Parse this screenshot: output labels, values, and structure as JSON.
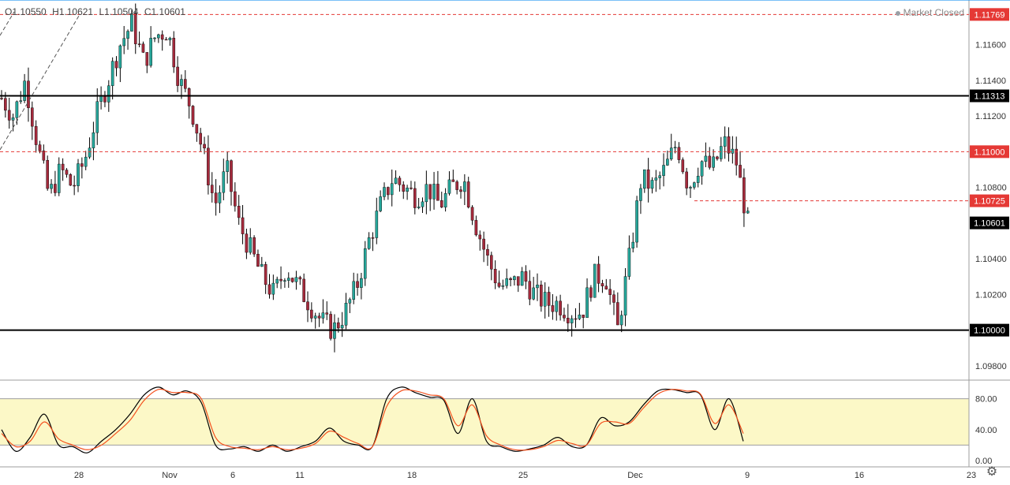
{
  "ohlc": {
    "open": "O1.10550",
    "high": "H1.10621",
    "low": "L1.10504",
    "close": "C1.10601"
  },
  "status": {
    "market": "Market Closed"
  },
  "chart_data": {
    "type": "candlestick",
    "price_axis": {
      "ylim": [
        1.0972,
        1.1185
      ],
      "ticks": [
        "1.11600",
        "1.11400",
        "1.11200",
        "1.10800",
        "1.10400",
        "1.10200",
        "1.09800"
      ]
    },
    "time_axis": {
      "labels": [
        {
          "text": "28",
          "index": 0
        },
        {
          "text": "Nov",
          "index": 5
        },
        {
          "text": "6",
          "index": 8
        },
        {
          "text": "11",
          "index": 13
        },
        {
          "text": "18",
          "index": 20
        },
        {
          "text": "25",
          "index": 25
        },
        {
          "text": "Dec",
          "index": 30
        },
        {
          "text": "9",
          "index": 35
        },
        {
          "text": "16",
          "index": 40
        },
        {
          "text": "23",
          "index": 45
        }
      ]
    },
    "levels": [
      {
        "price": 1.11769,
        "label": "1.11769",
        "style": "dashed",
        "color": "#e53935",
        "tag_bg": "#e53935",
        "tag_fg": "#ffffff"
      },
      {
        "price": 1.11313,
        "label": "1.11313",
        "style": "solid",
        "color": "#000000",
        "tag_bg": "#000000",
        "tag_fg": "#ffffff"
      },
      {
        "price": 1.11,
        "label": "1.11000",
        "style": "dashed",
        "color": "#e53935",
        "tag_bg": "#e53935",
        "tag_fg": "#ffffff"
      },
      {
        "price": 1.10725,
        "label": "1.10725",
        "style": "dashed",
        "color": "#e53935",
        "tag_bg": "#e53935",
        "tag_fg": "#ffffff"
      },
      {
        "price": 1.10601,
        "label": "1.10601",
        "style": "none",
        "color": "#000000",
        "tag_bg": "#000000",
        "tag_fg": "#ffffff"
      },
      {
        "price": 1.1,
        "label": "1.10000",
        "style": "solid",
        "color": "#000000",
        "tag_bg": "#000000",
        "tag_fg": "#ffffff"
      }
    ],
    "waypoints": [
      [
        0,
        1.113
      ],
      [
        1,
        1.112
      ],
      [
        2,
        1.114
      ],
      [
        3,
        1.1105
      ],
      [
        4,
        1.1075
      ],
      [
        5,
        1.109
      ],
      [
        6,
        1.108
      ],
      [
        7,
        1.1095
      ],
      [
        8,
        1.112
      ],
      [
        9,
        1.114
      ],
      [
        10,
        1.116
      ],
      [
        11,
        1.1172
      ],
      [
        12,
        1.115
      ],
      [
        13,
        1.1165
      ],
      [
        14,
        1.1168
      ],
      [
        15,
        1.114
      ],
      [
        16,
        1.1125
      ],
      [
        17,
        1.11
      ],
      [
        18,
        1.107
      ],
      [
        19,
        1.109
      ],
      [
        20,
        1.106
      ],
      [
        21,
        1.1045
      ],
      [
        22,
        1.103
      ],
      [
        23,
        1.102
      ],
      [
        24,
        1.1035
      ],
      [
        25,
        1.1025
      ],
      [
        26,
        1.1015
      ],
      [
        27,
        1.1005
      ],
      [
        28,
        1.1
      ],
      [
        29,
        1.101
      ],
      [
        30,
        1.1025
      ],
      [
        31,
        1.105
      ],
      [
        32,
        1.107
      ],
      [
        33,
        1.1085
      ],
      [
        34,
        1.108
      ],
      [
        35,
        1.1075
      ],
      [
        36,
        1.108
      ],
      [
        37,
        1.107
      ],
      [
        38,
        1.108
      ],
      [
        39,
        1.1085
      ],
      [
        40,
        1.106
      ],
      [
        41,
        1.104
      ],
      [
        42,
        1.1025
      ],
      [
        43,
        1.1025
      ],
      [
        44,
        1.103
      ],
      [
        45,
        1.102
      ],
      [
        46,
        1.1015
      ],
      [
        47,
        1.1015
      ],
      [
        48,
        1.101
      ],
      [
        49,
        1.101
      ],
      [
        50,
        1.103
      ],
      [
        51,
        1.103
      ],
      [
        52,
        1.1
      ],
      [
        53,
        1.104
      ],
      [
        54,
        1.1085
      ],
      [
        55,
        1.108
      ],
      [
        56,
        1.109
      ],
      [
        57,
        1.1105
      ],
      [
        58,
        1.108
      ],
      [
        59,
        1.1095
      ],
      [
        60,
        1.109
      ],
      [
        61,
        1.1105
      ],
      [
        62,
        1.1095
      ],
      [
        63,
        1.106
      ]
    ],
    "oscillator": {
      "type": "stochastic",
      "ylim": [
        0,
        100
      ],
      "band": [
        20,
        80
      ],
      "ticks": [
        "80.00",
        "40.00",
        "0.00"
      ],
      "k_color": "#000000",
      "d_color": "#f4511e",
      "k_waypoints": [
        [
          0,
          40
        ],
        [
          1,
          12
        ],
        [
          2,
          30
        ],
        [
          3,
          60
        ],
        [
          4,
          20
        ],
        [
          5,
          18
        ],
        [
          6,
          10
        ],
        [
          7,
          25
        ],
        [
          8,
          40
        ],
        [
          9,
          60
        ],
        [
          10,
          85
        ],
        [
          11,
          95
        ],
        [
          12,
          85
        ],
        [
          13,
          90
        ],
        [
          14,
          75
        ],
        [
          15,
          20
        ],
        [
          16,
          15
        ],
        [
          17,
          18
        ],
        [
          18,
          12
        ],
        [
          19,
          20
        ],
        [
          20,
          12
        ],
        [
          21,
          18
        ],
        [
          22,
          25
        ],
        [
          23,
          42
        ],
        [
          24,
          25
        ],
        [
          25,
          20
        ],
        [
          26,
          18
        ],
        [
          27,
          80
        ],
        [
          28,
          95
        ],
        [
          29,
          88
        ],
        [
          30,
          82
        ],
        [
          31,
          78
        ],
        [
          32,
          35
        ],
        [
          33,
          80
        ],
        [
          34,
          25
        ],
        [
          35,
          18
        ],
        [
          36,
          12
        ],
        [
          37,
          15
        ],
        [
          38,
          20
        ],
        [
          39,
          30
        ],
        [
          40,
          18
        ],
        [
          41,
          20
        ],
        [
          42,
          55
        ],
        [
          43,
          45
        ],
        [
          44,
          50
        ],
        [
          45,
          72
        ],
        [
          46,
          90
        ],
        [
          47,
          92
        ],
        [
          48,
          88
        ],
        [
          49,
          85
        ],
        [
          50,
          40
        ],
        [
          51,
          80
        ],
        [
          52,
          25
        ]
      ],
      "d_waypoints": [
        [
          0,
          35
        ],
        [
          1,
          18
        ],
        [
          2,
          25
        ],
        [
          3,
          50
        ],
        [
          4,
          28
        ],
        [
          5,
          20
        ],
        [
          6,
          14
        ],
        [
          7,
          20
        ],
        [
          8,
          35
        ],
        [
          9,
          52
        ],
        [
          10,
          78
        ],
        [
          11,
          92
        ],
        [
          12,
          88
        ],
        [
          13,
          88
        ],
        [
          14,
          80
        ],
        [
          15,
          30
        ],
        [
          16,
          18
        ],
        [
          17,
          16
        ],
        [
          18,
          14
        ],
        [
          19,
          18
        ],
        [
          20,
          14
        ],
        [
          21,
          16
        ],
        [
          22,
          22
        ],
        [
          23,
          38
        ],
        [
          24,
          30
        ],
        [
          25,
          22
        ],
        [
          26,
          18
        ],
        [
          27,
          70
        ],
        [
          28,
          90
        ],
        [
          29,
          90
        ],
        [
          30,
          85
        ],
        [
          31,
          80
        ],
        [
          32,
          45
        ],
        [
          33,
          72
        ],
        [
          34,
          32
        ],
        [
          35,
          20
        ],
        [
          36,
          14
        ],
        [
          37,
          14
        ],
        [
          38,
          18
        ],
        [
          39,
          26
        ],
        [
          40,
          22
        ],
        [
          41,
          20
        ],
        [
          42,
          48
        ],
        [
          43,
          50
        ],
        [
          44,
          48
        ],
        [
          45,
          68
        ],
        [
          46,
          86
        ],
        [
          47,
          92
        ],
        [
          48,
          90
        ],
        [
          49,
          86
        ],
        [
          50,
          48
        ],
        [
          51,
          72
        ],
        [
          52,
          35
        ]
      ]
    },
    "colors": {
      "up": "#26a69a",
      "down": "#a52a3c",
      "wick": "#000000",
      "band_fill": "#fcf8c7",
      "band_line": "#9e9e9e",
      "grid": "#ffffff",
      "axis_text": "#333333",
      "border": "#9e9e9e"
    }
  }
}
